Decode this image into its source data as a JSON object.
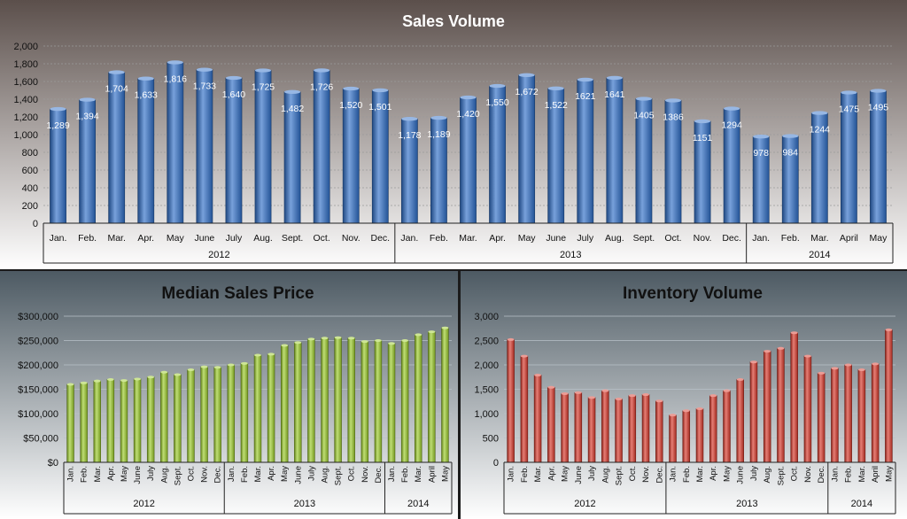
{
  "chart_data": [
    {
      "id": "sales",
      "type": "bar",
      "title": "Sales Volume",
      "ylim": [
        0,
        2000
      ],
      "yticks": [
        "0",
        "200",
        "400",
        "600",
        "800",
        "1,000",
        "1,200",
        "1,400",
        "1,600",
        "1,800",
        "2,000"
      ],
      "categories": [
        "Jan.",
        "Feb.",
        "Mar.",
        "Apr.",
        "May",
        "June",
        "July",
        "Aug.",
        "Sept.",
        "Oct.",
        "Nov.",
        "Dec.",
        "Jan.",
        "Feb.",
        "Mar.",
        "Apr.",
        "May",
        "June",
        "July",
        "Aug.",
        "Sept.",
        "Oct.",
        "Nov.",
        "Dec.",
        "Jan.",
        "Feb.",
        "Mar.",
        "April",
        "May"
      ],
      "groups": [
        {
          "label": "2012",
          "count": 12
        },
        {
          "label": "2013",
          "count": 12
        },
        {
          "label": "2014",
          "count": 5
        }
      ],
      "values": [
        1289,
        1394,
        1704,
        1633,
        1816,
        1733,
        1640,
        1725,
        1482,
        1726,
        1520,
        1501,
        1178,
        1189,
        1420,
        1550,
        1672,
        1522,
        1621,
        1641,
        1405,
        1386,
        1151,
        1294,
        978,
        984,
        1244,
        1475,
        1495
      ],
      "data_labels": [
        "1,289",
        "1,394",
        "1,704",
        "1,633",
        "1,816",
        "1,733",
        "1,640",
        "1,725",
        "1,482",
        "1,726",
        "1,520",
        "1,501",
        "1,178",
        "1,189",
        "1,420",
        "1,550",
        "1,672",
        "1,522",
        "1621",
        "1641",
        "1405",
        "1386",
        "1151",
        "1294",
        "978",
        "984",
        "1244",
        "1475",
        "1495"
      ],
      "grid": true,
      "color": "#2f6fc8"
    },
    {
      "id": "price",
      "type": "bar",
      "title": "Median Sales Price",
      "ylim": [
        0,
        300000
      ],
      "yticks": [
        "$0",
        "$50,000",
        "$100,000",
        "$150,000",
        "$200,000",
        "$250,000",
        "$300,000"
      ],
      "categories": [
        "Jan.",
        "Feb.",
        "Mar.",
        "Apr.",
        "May",
        "June",
        "July",
        "Aug.",
        "Sept.",
        "Oct.",
        "Nov.",
        "Dec.",
        "Jan.",
        "Feb.",
        "Mar.",
        "Apr.",
        "May",
        "June",
        "July",
        "Aug.",
        "Sept.",
        "Oct.",
        "Nov.",
        "Dec.",
        "Jan.",
        "Feb.",
        "Mar.",
        "April",
        "May"
      ],
      "groups": [
        {
          "label": "2012",
          "count": 12
        },
        {
          "label": "2013",
          "count": 12
        },
        {
          "label": "2014",
          "count": 5
        }
      ],
      "values": [
        160000,
        163000,
        167000,
        170000,
        168000,
        171000,
        175000,
        185000,
        180000,
        190000,
        196000,
        195000,
        200000,
        203000,
        220000,
        222000,
        240000,
        246000,
        253000,
        255000,
        256000,
        255000,
        248000,
        250000,
        244000,
        250000,
        262000,
        268000,
        276000
      ],
      "grid": true,
      "color": "#9ccc2a"
    },
    {
      "id": "inventory",
      "type": "bar",
      "title": "Inventory Volume",
      "ylim": [
        0,
        3000
      ],
      "yticks": [
        "0",
        "500",
        "1,000",
        "1,500",
        "2,000",
        "2,500",
        "3,000"
      ],
      "categories": [
        "Jan.",
        "Feb.",
        "Mar.",
        "Apr.",
        "May",
        "June",
        "July",
        "Aug.",
        "Sept.",
        "Oct.",
        "Nov.",
        "Dec.",
        "Jan.",
        "Feb.",
        "Mar.",
        "Apr.",
        "May",
        "June",
        "July",
        "Aug.",
        "Sept.",
        "Oct.",
        "Nov.",
        "Dec.",
        "Jan.",
        "Feb.",
        "Mar.",
        "April",
        "May"
      ],
      "groups": [
        {
          "label": "2012",
          "count": 12
        },
        {
          "label": "2013",
          "count": 12
        },
        {
          "label": "2014",
          "count": 5
        }
      ],
      "values": [
        2520,
        2180,
        1790,
        1540,
        1410,
        1430,
        1330,
        1470,
        1300,
        1370,
        1390,
        1260,
        970,
        1060,
        1100,
        1370,
        1470,
        1700,
        2060,
        2280,
        2340,
        2660,
        2180,
        1830,
        1930,
        2000,
        1900,
        2020,
        2720
      ],
      "grid": true,
      "color": "#d9382a"
    }
  ]
}
